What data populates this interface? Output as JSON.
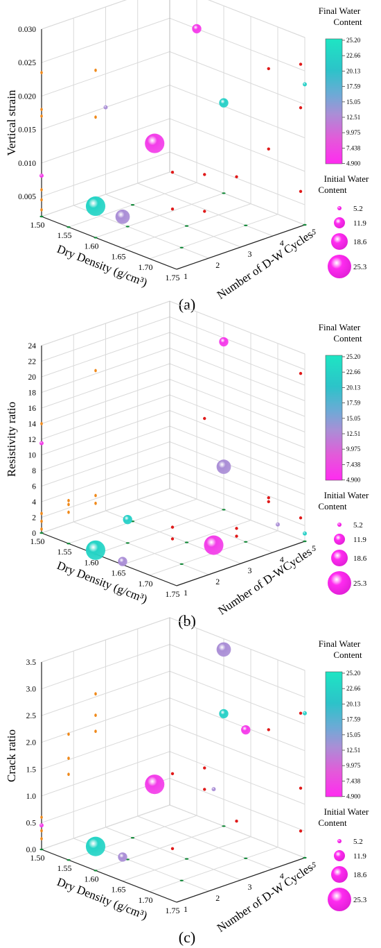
{
  "panel_labels": [
    "(a)",
    "(b)",
    "(c)"
  ],
  "chart_data": [
    {
      "type": "scatter",
      "panel": "(a)",
      "xlabel": "Dry Density (g/cm³)",
      "ylabel": "Vertical strain",
      "zlabel": "Number of D-W Cycles",
      "x_ticks": [
        "1.50",
        "1.55",
        "1.60",
        "1.65",
        "1.70",
        "1.75"
      ],
      "y_ticks": [
        "0.005",
        "0.010",
        "0.015",
        "0.020",
        "0.025",
        "0.030"
      ],
      "z_ticks": [
        "1",
        "2",
        "3",
        "4",
        "5"
      ],
      "xlim": [
        1.5,
        1.75
      ],
      "ylim": [
        0.002,
        0.03
      ],
      "zlim": [
        1,
        5
      ],
      "colorbar_title": "Final Water Content",
      "colorbar_ticks": [
        "25.20",
        "22.66",
        "20.13",
        "17.59",
        "15.05",
        "12.51",
        "9.975",
        "7.438",
        "4.900"
      ],
      "size_legend_title": "Initial Water Content",
      "size_legend": [
        "5.2",
        "11.9",
        "18.6",
        "25.3"
      ],
      "bubbles": [
        {
          "x": 1.6,
          "y": 0.0067,
          "z": 1,
          "size": 25.3,
          "color": 22.7
        },
        {
          "x": 1.5,
          "y": 0.0081,
          "z": 1,
          "size": 5.2,
          "color": 7.0
        },
        {
          "x": 1.65,
          "y": 0.0067,
          "z": 1,
          "size": 18.6,
          "color": 15.0
        },
        {
          "x": 1.6,
          "y": 0.0155,
          "z": 5,
          "size": 11.9,
          "color": 22.0
        },
        {
          "x": 1.65,
          "y": 0.016,
          "z": 2,
          "size": 25.3,
          "color": 7.4
        },
        {
          "x": 1.55,
          "y": 0.025,
          "z": 5,
          "size": 11.9,
          "color": 7.0
        },
        {
          "x": 1.5,
          "y": 0.015,
          "z": 3,
          "size": 5.2,
          "color": 15.0
        },
        {
          "x": 1.75,
          "y": 0.023,
          "z": 5,
          "size": 5.2,
          "color": 22.0
        }
      ],
      "projections": {
        "back_wall": [
          [
            1.5,
            0.003
          ],
          [
            1.5,
            0.0045
          ],
          [
            1.5,
            0.006
          ],
          [
            1.5,
            0.017
          ],
          [
            1.5,
            0.018
          ],
          [
            1.5,
            0.0235
          ],
          [
            1.6,
            0.027
          ],
          [
            1.6,
            0.02
          ]
        ],
        "side_wall": [
          [
            1,
            0.0165
          ],
          [
            2,
            0.0145
          ],
          [
            1,
            0.011
          ],
          [
            3,
            0.0125
          ],
          [
            2,
            0.009
          ],
          [
            4,
            0.015
          ],
          [
            5,
            0.0195
          ],
          [
            5,
            0.026
          ],
          [
            4,
            0.027
          ],
          [
            5,
            0.007
          ]
        ],
        "floor": [
          [
            1.5,
            1
          ],
          [
            1.55,
            1
          ],
          [
            1.6,
            1
          ],
          [
            1.6,
            2
          ],
          [
            1.7,
            2
          ],
          [
            1.55,
            3
          ],
          [
            1.65,
            3
          ],
          [
            1.7,
            4
          ],
          [
            1.75,
            5
          ],
          [
            1.6,
            5
          ]
        ]
      }
    },
    {
      "type": "scatter",
      "panel": "(b)",
      "xlabel": "Dry Density (g/cm³)",
      "ylabel": "Resistivity ratio",
      "zlabel": "Number of D-WCycles",
      "x_ticks": [
        "1.50",
        "1.55",
        "1.60",
        "1.65",
        "1.70",
        "1.75"
      ],
      "y_ticks": [
        "0",
        "2",
        "4",
        "6",
        "8",
        "10",
        "12",
        "14",
        "16",
        "18",
        "20",
        "22",
        "24"
      ],
      "z_ticks": [
        "1",
        "2",
        "3",
        "4",
        "5"
      ],
      "xlim": [
        1.5,
        1.75
      ],
      "ylim": [
        0,
        24
      ],
      "zlim": [
        1,
        5
      ],
      "colorbar_title": "Final Water Content",
      "colorbar_ticks": [
        "25.20",
        "22.66",
        "20.13",
        "17.59",
        "15.05",
        "12.51",
        "9.975",
        "7.438",
        "4.900"
      ],
      "size_legend_title": "Initial Water Content",
      "size_legend": [
        "5.2",
        "11.9",
        "18.6",
        "25.3"
      ],
      "bubbles": [
        {
          "x": 1.6,
          "y": 0.5,
          "z": 1,
          "size": 25.3,
          "color": 22.7
        },
        {
          "x": 1.65,
          "y": 0.4,
          "z": 1,
          "size": 11.9,
          "color": 15.0
        },
        {
          "x": 1.7,
          "y": 1.0,
          "z": 3,
          "size": 25.3,
          "color": 7.4
        },
        {
          "x": 1.6,
          "y": 3.0,
          "z": 2,
          "size": 11.9,
          "color": 22.0
        },
        {
          "x": 1.6,
          "y": 5.5,
          "z": 5,
          "size": 18.6,
          "color": 15.0
        },
        {
          "x": 1.5,
          "y": 11.5,
          "z": 1,
          "size": 5.2,
          "color": 7.0
        },
        {
          "x": 1.6,
          "y": 21.5,
          "z": 5,
          "size": 11.9,
          "color": 7.0
        },
        {
          "x": 1.7,
          "y": 0.8,
          "z": 5,
          "size": 5.2,
          "color": 15.0
        },
        {
          "x": 1.75,
          "y": 1.0,
          "z": 5,
          "size": 5.2,
          "color": 22.0
        }
      ],
      "projections": {
        "back_wall": [
          [
            1.5,
            14.0
          ],
          [
            1.5,
            1.5
          ],
          [
            1.5,
            2.5
          ],
          [
            1.5,
            0.5
          ],
          [
            1.55,
            4.0
          ],
          [
            1.55,
            5.0
          ],
          [
            1.55,
            5.5
          ],
          [
            1.6,
            23.5
          ],
          [
            1.6,
            7.5
          ],
          [
            1.6,
            6.5
          ]
        ],
        "side_wall": [
          [
            1,
            7.5
          ],
          [
            1,
            6.0
          ],
          [
            2,
            20.0
          ],
          [
            3,
            4.5
          ],
          [
            3,
            3.5
          ],
          [
            4,
            7.0
          ],
          [
            4,
            6.5
          ],
          [
            5,
            3.0
          ],
          [
            5,
            21.5
          ]
        ],
        "floor": [
          [
            1.5,
            1
          ],
          [
            1.55,
            1
          ],
          [
            1.6,
            1
          ],
          [
            1.6,
            2
          ],
          [
            1.7,
            2
          ],
          [
            1.55,
            3
          ],
          [
            1.65,
            3
          ],
          [
            1.7,
            4
          ],
          [
            1.75,
            5
          ],
          [
            1.6,
            5
          ]
        ]
      }
    },
    {
      "type": "scatter",
      "panel": "(c)",
      "xlabel": "Dry Density (g/cm³)",
      "ylabel": "Crack ratio",
      "zlabel": "Number of D-W Cycles",
      "x_ticks": [
        "1.50",
        "1.55",
        "1.60",
        "1.65",
        "1.70",
        "1.75"
      ],
      "y_ticks": [
        "0.0",
        "0.5",
        "1.0",
        "1.5",
        "2.0",
        "2.5",
        "3.0",
        "3.5"
      ],
      "z_ticks": [
        "1",
        "2",
        "3",
        "4",
        "5"
      ],
      "xlim": [
        1.5,
        1.75
      ],
      "ylim": [
        0,
        3.5
      ],
      "zlim": [
        1,
        5
      ],
      "colorbar_title": "Final Water Content",
      "colorbar_ticks": [
        "25.20",
        "22.66",
        "20.13",
        "17.59",
        "15.05",
        "12.51",
        "9.975",
        "7.438",
        "4.900"
      ],
      "size_legend_title": "Initial Water Content",
      "size_legend": [
        "5.2",
        "11.9",
        "18.6",
        "25.3"
      ],
      "bubbles": [
        {
          "x": 1.6,
          "y": 0.45,
          "z": 1,
          "size": 25.3,
          "color": 22.7
        },
        {
          "x": 1.5,
          "y": 0.45,
          "z": 1,
          "size": 5.2,
          "color": 7.0
        },
        {
          "x": 1.65,
          "y": 0.45,
          "z": 1,
          "size": 11.9,
          "color": 15.0
        },
        {
          "x": 1.6,
          "y": 2.1,
          "z": 5,
          "size": 11.9,
          "color": 22.0
        },
        {
          "x": 1.6,
          "y": 3.3,
          "z": 5,
          "size": 18.6,
          "color": 15.0
        },
        {
          "x": 1.7,
          "y": 1.5,
          "z": 3,
          "size": 5.2,
          "color": 15.0
        },
        {
          "x": 1.65,
          "y": 1.6,
          "z": 2,
          "size": 25.3,
          "color": 7.4
        },
        {
          "x": 1.7,
          "y": 2.4,
          "z": 4,
          "size": 11.9,
          "color": 7.0
        },
        {
          "x": 1.75,
          "y": 2.7,
          "z": 5,
          "size": 5.2,
          "color": 22.0
        }
      ],
      "projections": {
        "back_wall": [
          [
            1.5,
            0.2
          ],
          [
            1.5,
            0.35
          ],
          [
            1.5,
            0.6
          ],
          [
            1.55,
            1.6
          ],
          [
            1.55,
            1.9
          ],
          [
            1.55,
            2.35
          ],
          [
            1.6,
            2.6
          ],
          [
            1.6,
            2.9
          ],
          [
            1.6,
            3.3
          ]
        ],
        "side_wall": [
          [
            1,
            2.4
          ],
          [
            1,
            1.0
          ],
          [
            2,
            1.9
          ],
          [
            2,
            2.3
          ],
          [
            3,
            1.1
          ],
          [
            4,
            2.6
          ],
          [
            5,
            1.3
          ],
          [
            5,
            2.7
          ],
          [
            5,
            0.5
          ]
        ],
        "floor": [
          [
            1.5,
            1
          ],
          [
            1.55,
            1
          ],
          [
            1.6,
            1
          ],
          [
            1.6,
            2
          ],
          [
            1.7,
            2
          ],
          [
            1.55,
            3
          ],
          [
            1.65,
            3
          ],
          [
            1.7,
            4
          ],
          [
            1.75,
            5
          ],
          [
            1.6,
            5
          ]
        ]
      }
    }
  ]
}
